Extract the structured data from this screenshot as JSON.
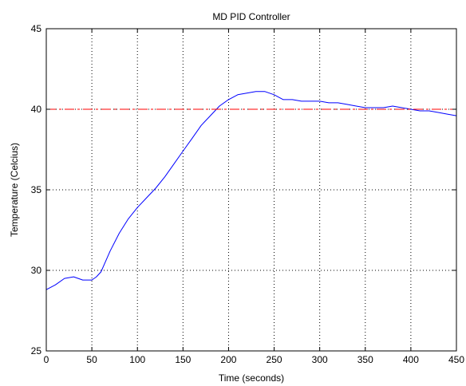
{
  "chart_data": {
    "type": "line",
    "title": "MD PID Controller",
    "xlabel": "Time (seconds)",
    "ylabel": "Temperature (Celcius)",
    "xlim": [
      0,
      450
    ],
    "ylim": [
      25,
      45
    ],
    "xticks": [
      0,
      50,
      100,
      150,
      200,
      250,
      300,
      350,
      400,
      450
    ],
    "yticks": [
      25,
      30,
      35,
      40,
      45
    ],
    "xtick_labels": [
      "0",
      "50",
      "100",
      "150",
      "200",
      "250",
      "300",
      "350",
      "400",
      "450"
    ],
    "ytick_labels": [
      "25",
      "30",
      "35",
      "40",
      "45"
    ],
    "grid": true,
    "series": [
      {
        "color": "#0000ff",
        "style": "solid",
        "x": [
          0,
          10,
          20,
          30,
          40,
          50,
          55,
          60,
          70,
          80,
          90,
          100,
          110,
          120,
          130,
          140,
          150,
          160,
          170,
          180,
          190,
          200,
          210,
          220,
          230,
          240,
          250,
          260,
          270,
          280,
          290,
          300,
          310,
          320,
          330,
          340,
          350,
          360,
          370,
          380,
          390,
          400,
          410,
          420,
          430,
          440,
          450
        ],
        "y": [
          28.8,
          29.1,
          29.5,
          29.6,
          29.4,
          29.4,
          29.6,
          29.9,
          31.2,
          32.3,
          33.2,
          33.9,
          34.5,
          35.1,
          35.8,
          36.6,
          37.4,
          38.2,
          39.0,
          39.6,
          40.2,
          40.6,
          40.9,
          41.0,
          41.1,
          41.1,
          40.9,
          40.6,
          40.6,
          40.5,
          40.5,
          40.5,
          40.4,
          40.4,
          40.3,
          40.2,
          40.1,
          40.1,
          40.1,
          40.2,
          40.1,
          40.0,
          39.9,
          39.9,
          39.8,
          39.7,
          39.6
        ]
      },
      {
        "color": "#ff0000",
        "style": "dashed",
        "x": [
          0,
          450
        ],
        "y": [
          40,
          40
        ]
      }
    ]
  }
}
